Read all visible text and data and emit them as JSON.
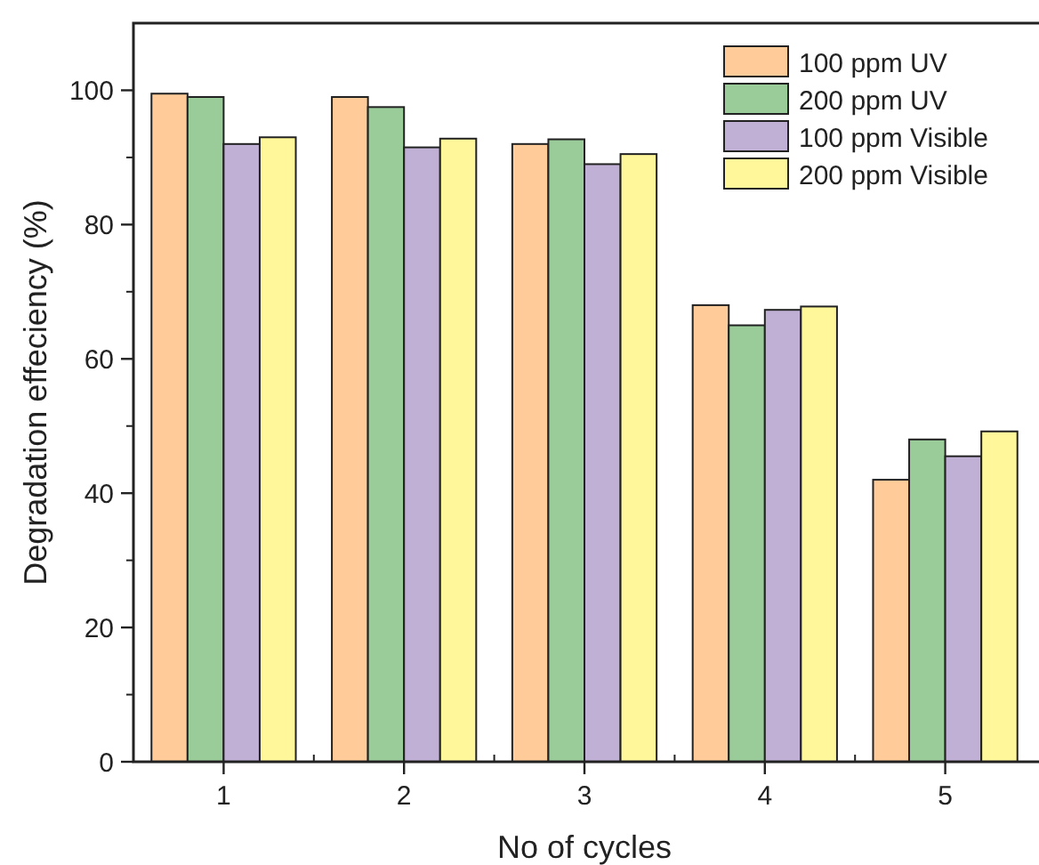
{
  "chart_data": {
    "type": "bar",
    "xlabel": "No of cycles",
    "ylabel": "Degradation effeciency (%)",
    "categories": [
      "1",
      "2",
      "3",
      "4",
      "5"
    ],
    "series": [
      {
        "name": "100 ppm UV",
        "color": "#ffcc99",
        "values": [
          99.5,
          99,
          92,
          68,
          42
        ]
      },
      {
        "name": "200 ppm UV",
        "color": "#99cc99",
        "values": [
          99,
          97.5,
          92.7,
          65,
          48
        ]
      },
      {
        "name": "100 ppm Visible",
        "color": "#c0b0d5",
        "values": [
          92,
          91.5,
          89,
          67.3,
          45.5
        ]
      },
      {
        "name": "200 ppm Visible",
        "color": "#fff799",
        "values": [
          93,
          92.8,
          90.5,
          67.8,
          49.2
        ]
      }
    ],
    "ylim": [
      0,
      110
    ],
    "yticks": [
      0,
      20,
      40,
      60,
      80,
      100
    ],
    "legend": "top right",
    "grid": false
  }
}
